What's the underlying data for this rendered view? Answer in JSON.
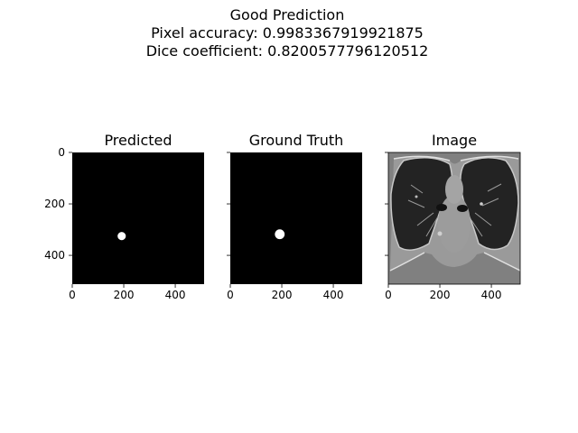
{
  "figure": {
    "title_lines": [
      "Good Prediction",
      "Pixel accuracy: 0.9983367919921875",
      "Dice coefficient: 0.8200577796120512"
    ]
  },
  "chart_data": [
    {
      "type": "image",
      "title": "Predicted",
      "content": "binary mask",
      "xlim": [
        0,
        512
      ],
      "ylim": [
        512,
        0
      ],
      "xticks": [
        0,
        200,
        400
      ],
      "yticks": [
        0,
        200,
        400
      ],
      "show_yticklabels": true,
      "blob": {
        "cx": 192,
        "cy": 325,
        "r": 16
      }
    },
    {
      "type": "image",
      "title": "Ground Truth",
      "content": "binary mask",
      "xlim": [
        0,
        512
      ],
      "ylim": [
        512,
        0
      ],
      "xticks": [
        0,
        200,
        400
      ],
      "yticks": [
        0,
        200,
        400
      ],
      "show_yticklabels": false,
      "blob": {
        "cx": 192,
        "cy": 318,
        "r": 19
      }
    },
    {
      "type": "image",
      "title": "Image",
      "content": "lung CT slice",
      "xlim": [
        0,
        512
      ],
      "ylim": [
        512,
        0
      ],
      "xticks": [
        0,
        200,
        400
      ],
      "yticks": [
        0,
        200,
        400
      ],
      "show_yticklabels": false
    }
  ],
  "colors": {
    "mask_bg": "#000000",
    "mask_fg": "#ffffff",
    "ct_bg": "#808080",
    "lung": "#202020"
  }
}
